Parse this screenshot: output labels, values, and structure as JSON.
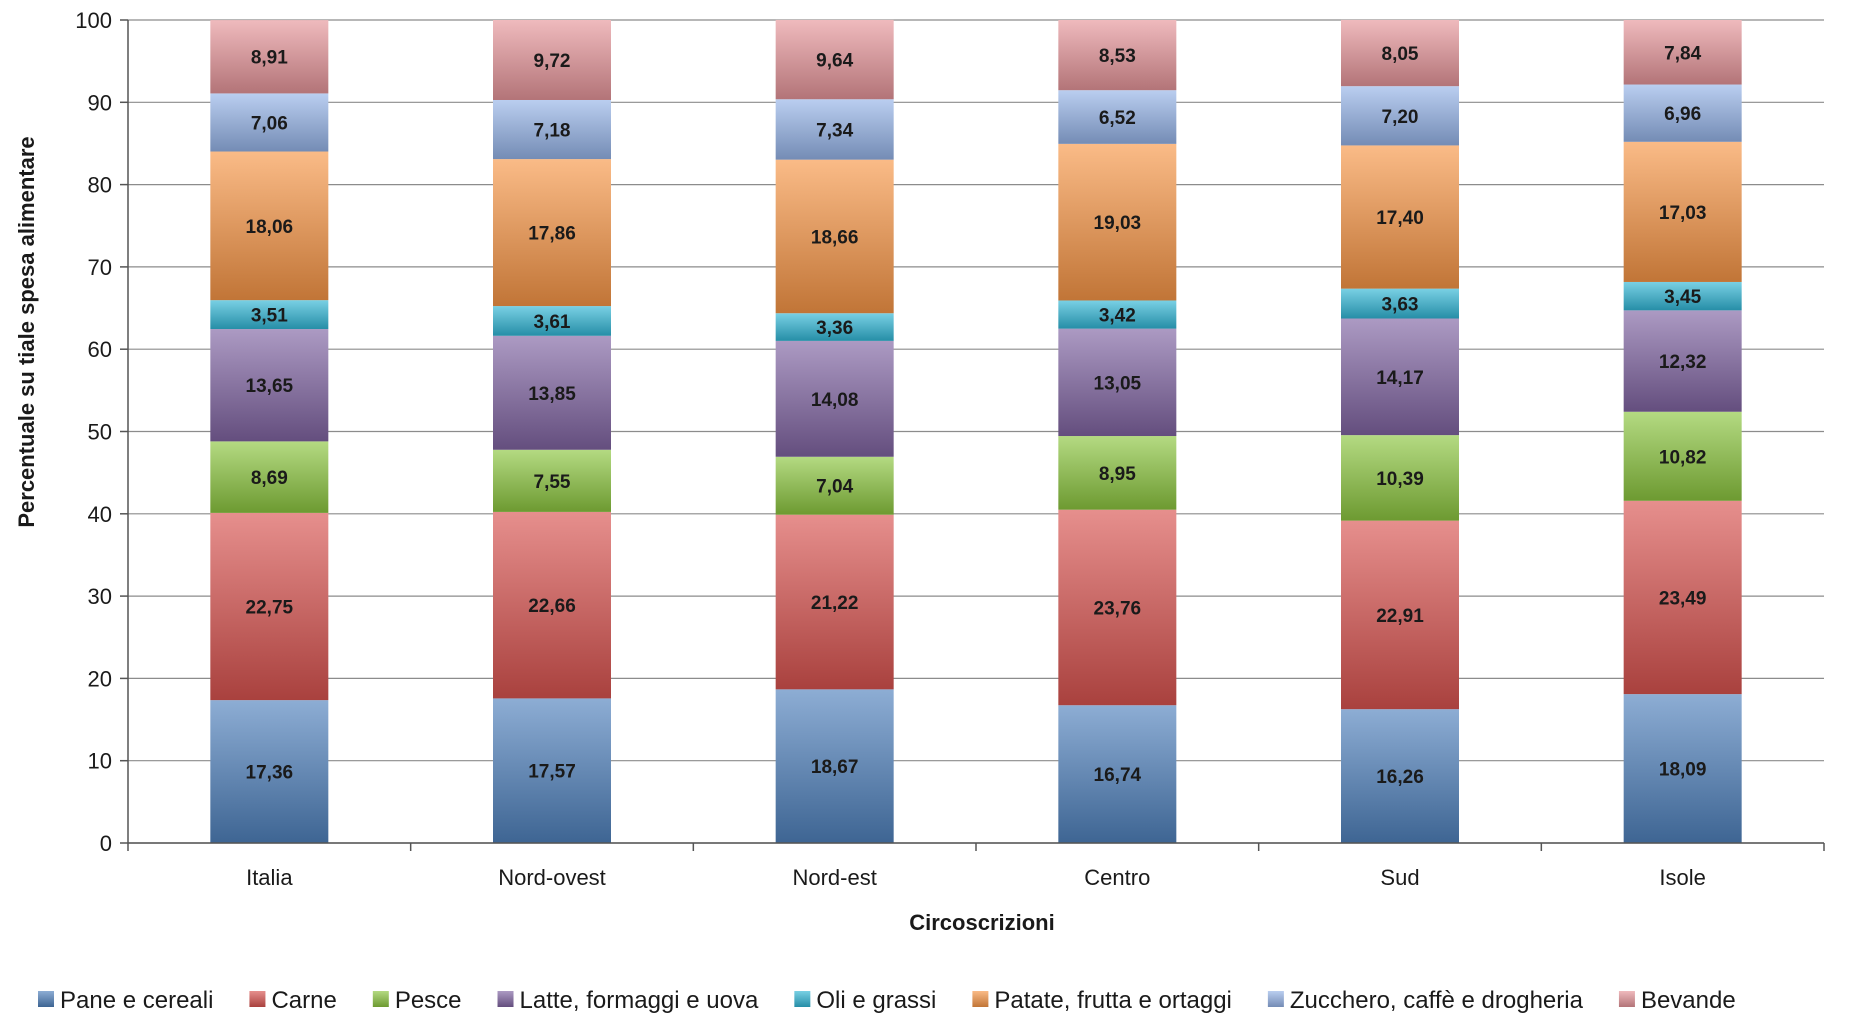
{
  "chart_data": {
    "type": "bar",
    "stacked": true,
    "categories": [
      "Italia",
      "Nord-ovest",
      "Nord-est",
      "Centro",
      "Sud",
      "Isole"
    ],
    "xlabel": "Circoscrizioni",
    "ylabel": "Percentuale su tiale spesa alimentare",
    "ylim": [
      0,
      100
    ],
    "yticks": [
      0,
      10,
      20,
      30,
      40,
      50,
      60,
      70,
      80,
      90,
      100
    ],
    "grid": true,
    "legend_position": "bottom",
    "series": [
      {
        "name": "Pane e cereali",
        "color": "#4f81bd",
        "values": [
          17.36,
          17.57,
          18.67,
          16.74,
          16.26,
          18.09
        ],
        "labels": [
          "17,36",
          "17,57",
          "18,67",
          "16,74",
          "16,26",
          "18,09"
        ]
      },
      {
        "name": "Carne",
        "color": "#d9534f",
        "values": [
          22.75,
          22.66,
          21.22,
          23.76,
          22.91,
          23.49
        ],
        "labels": [
          "22,75",
          "22,66",
          "21,22",
          "23,76",
          "22,91",
          "23,49"
        ]
      },
      {
        "name": "Pesce",
        "color": "#8cc63f",
        "values": [
          8.69,
          7.55,
          7.04,
          8.95,
          10.39,
          10.82
        ],
        "labels": [
          "8,69",
          "7,55",
          "7,04",
          "8,95",
          "10,39",
          "10,82"
        ]
      },
      {
        "name": "Latte, formaggi e uova",
        "color": "#8064a2",
        "values": [
          13.65,
          13.85,
          14.08,
          13.05,
          14.17,
          12.32
        ],
        "labels": [
          "13,65",
          "13,85",
          "14,08",
          "13,05",
          "14,17",
          "12,32"
        ]
      },
      {
        "name": "Oli e grassi",
        "color": "#31b6d6",
        "values": [
          3.51,
          3.61,
          3.36,
          3.42,
          3.63,
          3.45
        ],
        "labels": [
          "3,51",
          "3,61",
          "3,36",
          "3,42",
          "3,63",
          "3,45"
        ]
      },
      {
        "name": "Patate, frutta e ortaggi",
        "color": "#f79646",
        "values": [
          18.06,
          17.86,
          18.66,
          19.03,
          17.4,
          17.03
        ],
        "labels": [
          "18,06",
          "17,86",
          "18,66",
          "19,03",
          "17,40",
          "17,03"
        ]
      },
      {
        "name": "Zucchero, caffè e drogheria",
        "color": "#95b3e8",
        "values": [
          7.06,
          7.18,
          7.34,
          6.52,
          7.2,
          6.96
        ],
        "labels": [
          "7,06",
          "7,18",
          "7,34",
          "6,52",
          "7,20",
          "6,96"
        ]
      },
      {
        "name": "Bevande",
        "color": "#e6959a",
        "values": [
          8.91,
          9.72,
          9.64,
          8.53,
          8.05,
          7.84
        ],
        "labels": [
          "8,91",
          "9,72",
          "9,64",
          "8,53",
          "8,05",
          "7,84"
        ]
      }
    ]
  }
}
